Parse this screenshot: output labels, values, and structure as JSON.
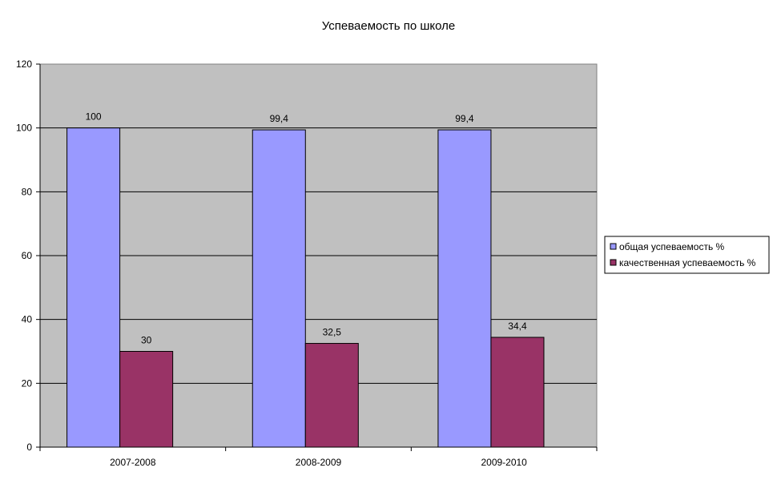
{
  "chart_data": {
    "type": "bar",
    "title": "Успеваемость по школе",
    "xlabel": "",
    "ylabel": "",
    "categories": [
      "2007-2008",
      "2008-2009",
      "2009-2010"
    ],
    "series": [
      {
        "name": "общая успеваемость %",
        "values": [
          100,
          99.4,
          99.4
        ],
        "labels": [
          "100",
          "99,4",
          "99,4"
        ],
        "color": "#9999ff"
      },
      {
        "name": "качественная успеваемость %",
        "values": [
          30,
          32.5,
          34.4
        ],
        "labels": [
          "30",
          "32,5",
          "34,4"
        ],
        "color": "#993366"
      }
    ],
    "ylim": [
      0,
      120
    ],
    "yticks": [
      0,
      20,
      40,
      60,
      80,
      100,
      120
    ],
    "grid": true,
    "plot_background": "#c0c0c0",
    "legend_position": "right"
  }
}
